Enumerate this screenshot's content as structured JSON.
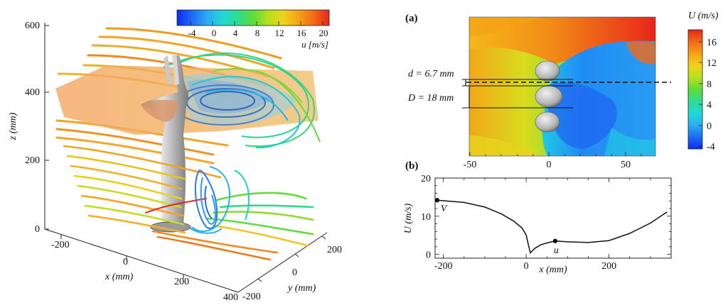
{
  "left_panel": {
    "axes": {
      "z_label": "z (mm)",
      "x_label": "x (mm)",
      "y_label": "y (mm)",
      "z_ticks": [
        "0",
        "200",
        "400",
        "600"
      ],
      "x_ticks": [
        "-200",
        "0",
        "200",
        "400"
      ],
      "y_ticks": [
        "-200",
        "0",
        "200"
      ]
    },
    "colorbar": {
      "label": "u [m/s]",
      "ticks": [
        "-4",
        "0",
        "4",
        "8",
        "12",
        "16",
        "20"
      ],
      "colors": [
        "#0a2cf2",
        "#1f6cf5",
        "#2aaef2",
        "#22d8d6",
        "#2ddc8e",
        "#5fdc3c",
        "#b5e01e",
        "#f2d21a",
        "#f4a117",
        "#f26a17",
        "#e8251c"
      ]
    }
  },
  "panel_a": {
    "label": "(a)",
    "d_label": "d = 6.7 mm",
    "D_label": "D = 18 mm",
    "x_ticks": [
      "-50",
      "0",
      "50"
    ],
    "colorbar": {
      "title": "U (m/s)",
      "ticks": [
        "16",
        "12",
        "8",
        "4",
        "0",
        "-4"
      ],
      "colors": [
        "#e8251c",
        "#f26a17",
        "#f4a117",
        "#f2d21a",
        "#b5e01e",
        "#5fdc3c",
        "#2ddc8e",
        "#22d8d6",
        "#2aaef2",
        "#1f6cf5",
        "#0a2cf2"
      ]
    }
  },
  "panel_b": {
    "label": "(b)",
    "ylabel": "U (m/s)",
    "xlabel": "x (mm)",
    "x_ticks": [
      "-200",
      "0",
      "200"
    ],
    "y_ticks": [
      "0",
      "10",
      "20"
    ],
    "marker_V": "V",
    "marker_u": "u"
  },
  "chart_data": {
    "type": "line",
    "title": "",
    "xlabel": "x (mm)",
    "ylabel": "U (m/s)",
    "xlim": [
      -220,
      350
    ],
    "ylim": [
      -1,
      20
    ],
    "x": [
      -215,
      -150,
      -100,
      -60,
      -30,
      -10,
      0,
      5,
      10,
      20,
      35,
      50,
      70,
      100,
      150,
      200,
      250,
      300,
      340
    ],
    "series": [
      {
        "name": "U",
        "values": [
          14.2,
          13.6,
          12.4,
          10.6,
          8.7,
          6.9,
          5.1,
          2.6,
          0.4,
          1.5,
          2.5,
          3.0,
          3.5,
          3.3,
          3.1,
          3.6,
          5.5,
          8.2,
          11.1
        ]
      }
    ],
    "annotations": [
      {
        "text": "V",
        "x": -215,
        "y": 14.2
      },
      {
        "text": "u",
        "x": 70,
        "y": 3.5
      }
    ]
  }
}
